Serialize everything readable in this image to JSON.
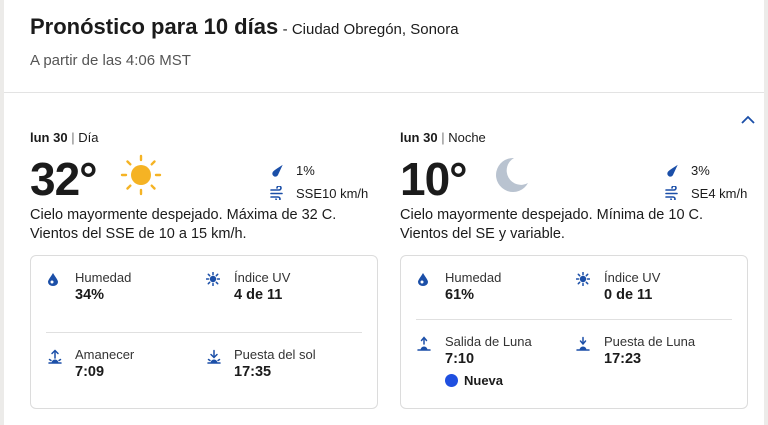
{
  "header": {
    "title": "Pronóstico para 10 días",
    "location": "- Ciudad Obregón, Sonora",
    "subtitle": "A partir de las 4:06 MST"
  },
  "icons": {
    "collapse": "chevron-up-icon",
    "sun": "sun-icon",
    "moon": "moon-icon",
    "rain": "raindrop-icon",
    "wind": "wind-icon",
    "humidity": "humidity-drop-icon",
    "uv": "uv-icon",
    "sunrise": "sunrise-icon",
    "sunset": "sunset-icon",
    "moonrise": "moonrise-icon",
    "moonset": "moonset-icon"
  },
  "colors": {
    "accent": "#1f4fe0",
    "sun": "#f5b324",
    "moon": "#b9c3d0"
  },
  "day": {
    "date": "lun 30",
    "period": "Día",
    "temperature": "32°",
    "precip": "1%",
    "wind": "SSE10 km/h",
    "description": "Cielo mayormente despejado. Máxima de 32 C. Vientos del SSE de 10 a 15 km/h.",
    "humidity_label": "Humedad",
    "humidity_value": "34%",
    "uv_label": "Índice UV",
    "uv_value": "4 de 11",
    "sunrise_label": "Amanecer",
    "sunrise_value": "7:09",
    "sunset_label": "Puesta del sol",
    "sunset_value": "17:35"
  },
  "night": {
    "date": "lun 30",
    "period": "Noche",
    "temperature": "10°",
    "precip": "3%",
    "wind": "SE4 km/h",
    "description": "Cielo mayormente despejado. Mínima de 10 C. Vientos del SE y variable.",
    "humidity_label": "Humedad",
    "humidity_value": "61%",
    "uv_label": "Índice UV",
    "uv_value": "0 de 11",
    "moonrise_label": "Salida de Luna",
    "moonrise_value": "7:10",
    "moonset_label": "Puesta de Luna",
    "moonset_value": "17:23",
    "moon_phase": "Nueva"
  }
}
